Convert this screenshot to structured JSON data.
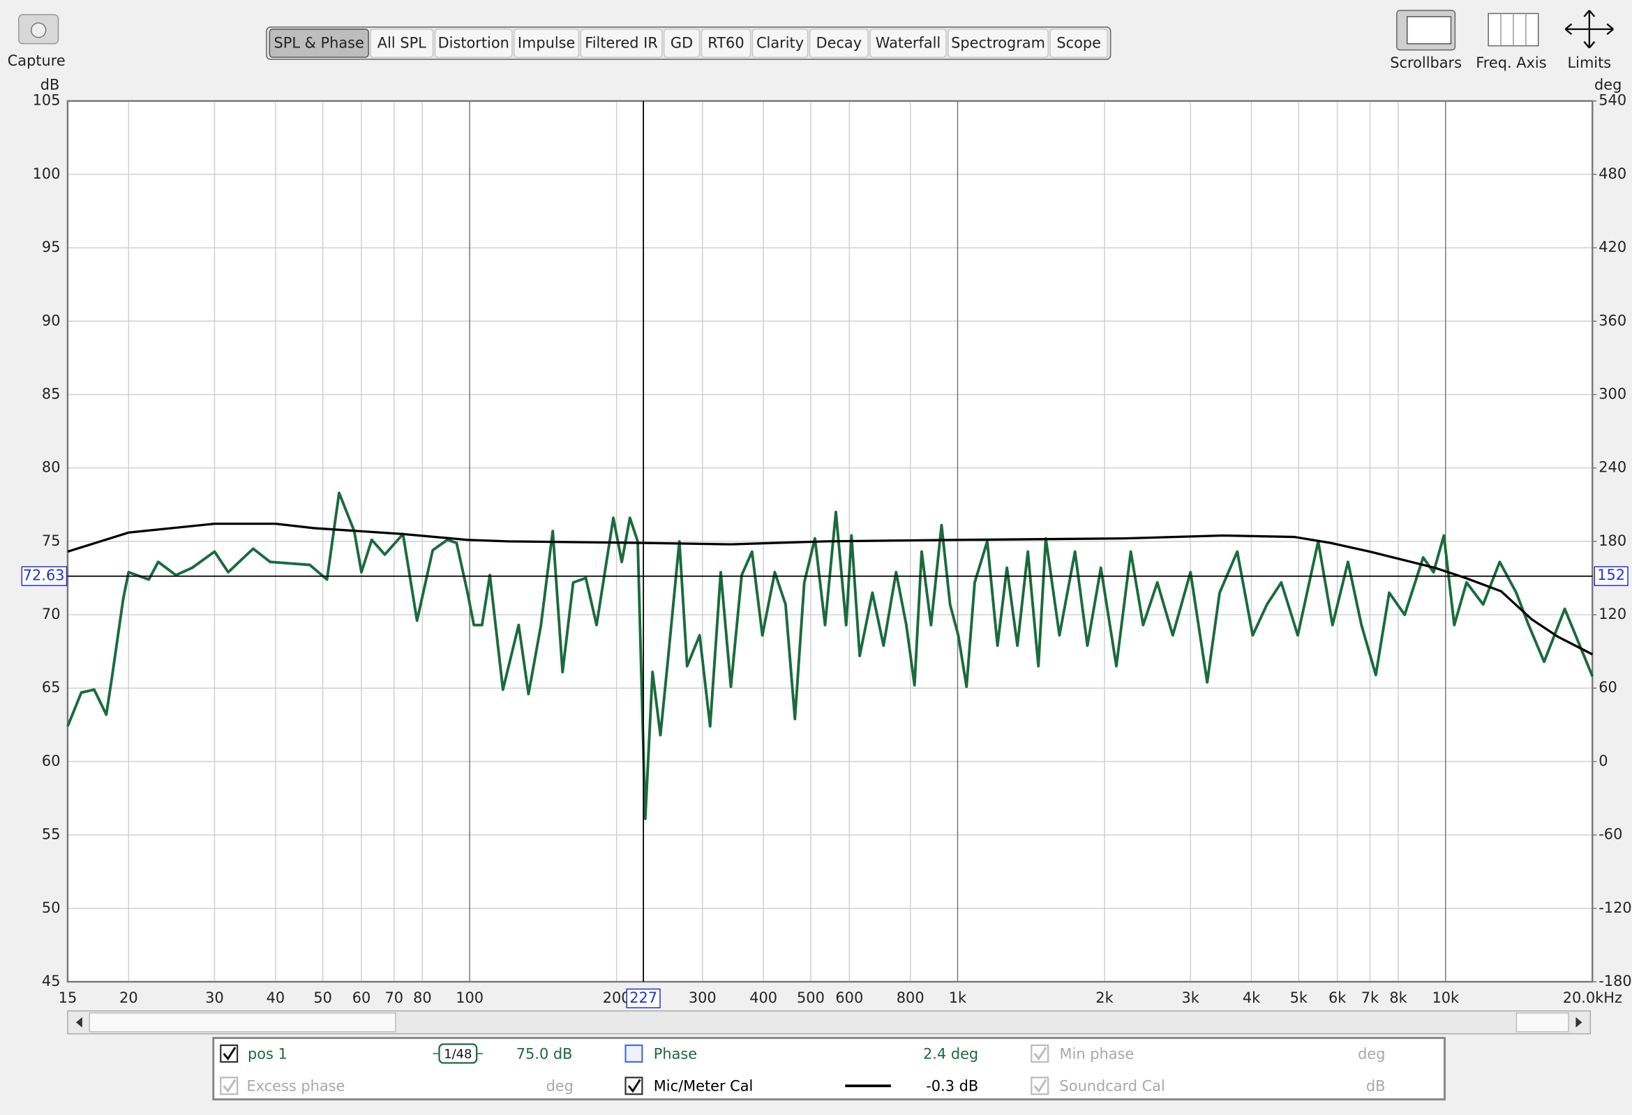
{
  "toolbar": {
    "capture": "Capture",
    "tabs": [
      "SPL & Phase",
      "All SPL",
      "Distortion",
      "Impulse",
      "Filtered IR",
      "GD",
      "RT60",
      "Clarity",
      "Decay",
      "Waterfall",
      "Spectrogram",
      "Scope"
    ],
    "tools": [
      "Scrollbars",
      "Freq. Axis",
      "Limits"
    ]
  },
  "chart_data": {
    "type": "line",
    "xscale": "log",
    "grid": true,
    "ylabel": "dB",
    "y2label": "deg",
    "xlim": [
      15,
      20000
    ],
    "ylim": [
      45,
      105
    ],
    "y2lim": [
      -180,
      540
    ],
    "xticks": [
      15,
      20,
      30,
      40,
      50,
      60,
      70,
      80,
      100,
      200,
      300,
      400,
      500,
      600,
      800,
      {
        "value": 1000,
        "label": "1k"
      },
      {
        "value": 2000,
        "label": "2k"
      },
      {
        "value": 3000,
        "label": "3k"
      },
      {
        "value": 4000,
        "label": "4k"
      },
      {
        "value": 5000,
        "label": "5k"
      },
      {
        "value": 6000,
        "label": "6k"
      },
      {
        "value": 7000,
        "label": "7k"
      },
      {
        "value": 8000,
        "label": "8k"
      },
      {
        "value": 10000,
        "label": "10k"
      },
      {
        "value": 20000,
        "label": "20.0kHz"
      }
    ],
    "yticks": [
      45,
      50,
      55,
      60,
      65,
      70,
      75,
      80,
      85,
      90,
      95,
      100,
      105
    ],
    "y2ticks": [
      -180,
      -120,
      -60,
      0,
      60,
      120,
      180,
      240,
      300,
      360,
      420,
      480,
      540
    ],
    "cursor": {
      "x": 227,
      "y": 72.63,
      "y2": 152
    },
    "series": [
      {
        "name": "pos 1",
        "color": "#1a6b3c",
        "x": [
          15,
          16,
          17,
          18,
          18.5,
          19.5,
          20,
          22,
          23,
          25,
          27,
          30,
          32,
          36,
          39,
          47,
          51,
          54,
          58,
          60,
          63,
          67,
          73,
          78,
          84,
          90,
          94,
          99,
          102,
          106,
          110,
          117,
          126,
          132,
          140,
          148,
          155,
          163,
          173,
          182,
          197,
          205,
          213,
          221,
          229,
          237,
          246,
          255,
          269,
          279,
          296,
          311,
          327,
          343,
          361,
          379,
          398,
          422,
          444,
          464,
          485,
          510,
          535,
          563,
          591,
          606,
          630,
          669,
          705,
          748,
          785,
          816,
          844,
          882,
          927,
          965,
          1003,
          1043,
          1084,
          1150,
          1207,
          1262,
          1326,
          1393,
          1464,
          1516,
          1617,
          1740,
          1845,
          1966,
          2115,
          2264,
          2400,
          2566,
          2760,
          3001,
          3247,
          3443,
          3742,
          4025,
          4305,
          4606,
          4979,
          5483,
          5866,
          6310,
          6724,
          7195,
          7665,
          8245,
          8996,
          9448,
          9922,
          10420,
          11040,
          11940,
          12910,
          13960,
          14800,
          15920,
          17550,
          20000
        ],
        "values": [
          62.4,
          64.7,
          64.9,
          63.2,
          65.8,
          71.1,
          72.9,
          72.4,
          73.6,
          72.7,
          73.2,
          74.3,
          72.9,
          74.5,
          73.6,
          73.4,
          72.4,
          78.3,
          75.7,
          72.9,
          75.1,
          74.1,
          75.5,
          69.6,
          74.4,
          75.1,
          74.9,
          71.5,
          69.3,
          69.3,
          72.7,
          64.9,
          69.3,
          64.6,
          69.3,
          75.7,
          66.1,
          72.2,
          72.5,
          69.3,
          76.6,
          73.6,
          76.6,
          75.0,
          56.1,
          66.1,
          61.8,
          67.0,
          75.0,
          66.5,
          68.6,
          62.4,
          72.9,
          65.1,
          72.7,
          74.3,
          68.6,
          72.9,
          70.7,
          62.9,
          72.2,
          75.2,
          69.3,
          77.0,
          69.3,
          75.4,
          67.2,
          71.5,
          67.9,
          72.9,
          69.3,
          65.2,
          74.3,
          69.3,
          76.1,
          70.7,
          68.6,
          65.1,
          72.2,
          75.0,
          67.9,
          73.2,
          67.9,
          74.3,
          66.5,
          75.2,
          68.6,
          74.3,
          67.9,
          73.2,
          66.5,
          74.3,
          69.3,
          72.2,
          68.6,
          72.9,
          65.4,
          71.5,
          74.3,
          68.6,
          70.7,
          72.2,
          68.6,
          75.0,
          69.3,
          73.6,
          69.3,
          65.9,
          71.5,
          70.0,
          73.9,
          72.9,
          75.4,
          69.3,
          72.2,
          70.7,
          73.6,
          71.5,
          69.3,
          66.8,
          70.4,
          65.8
        ]
      },
      {
        "name": "Mic/Meter Cal",
        "color": "#000000",
        "x": [
          15,
          20,
          30,
          40,
          48,
          73,
          99,
          120,
          221,
          343,
          535,
          1000,
          2200,
          3500,
          4900,
          5800,
          7000,
          9500,
          11000,
          13000,
          15000,
          17000,
          20000
        ],
        "values": [
          74.3,
          75.6,
          76.2,
          76.2,
          75.9,
          75.5,
          75.1,
          75.0,
          74.9,
          74.8,
          75.0,
          75.1,
          75.2,
          75.4,
          75.3,
          74.9,
          74.3,
          73.2,
          72.5,
          71.6,
          69.7,
          68.5,
          67.3
        ]
      }
    ]
  },
  "legend_panel": {
    "items": [
      {
        "series": 0,
        "checked": true,
        "smoothing": "1/48",
        "value": "75.0 dB"
      },
      {
        "label": "Phase",
        "checked": false,
        "value": "2.4 deg"
      },
      {
        "label": "Min phase",
        "checked": true,
        "disabled": true,
        "value": "deg"
      },
      {
        "label": "Excess phase",
        "checked": true,
        "disabled": true,
        "value": "deg"
      },
      {
        "series": 1,
        "checked": true,
        "value": "-0.3 dB"
      },
      {
        "label": "Soundcard Cal",
        "checked": true,
        "disabled": true,
        "value": "dB"
      }
    ]
  }
}
